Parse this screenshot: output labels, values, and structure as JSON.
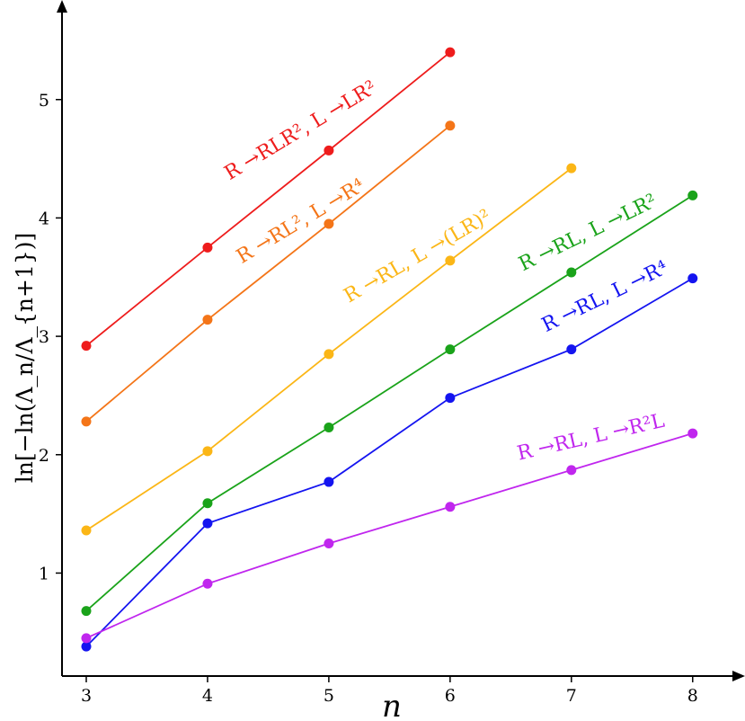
{
  "chart_data": {
    "type": "line",
    "xlabel": "n",
    "ylabel": "ln[−ln(Λ_n/Λ_{n+1})]",
    "xlim": [
      2.8,
      8.35
    ],
    "ylim": [
      0.13,
      5.75
    ],
    "xticks": [
      "3",
      "4",
      "5",
      "6",
      "7",
      "8"
    ],
    "yticks": [
      "1",
      "2",
      "3",
      "4",
      "5"
    ],
    "grid": false,
    "series": [
      {
        "name": "R →RLR², L →LR²",
        "color": "#ee1c1c",
        "x": [
          3,
          4,
          5,
          6
        ],
        "y": [
          2.92,
          3.75,
          4.57,
          5.4
        ]
      },
      {
        "name": "R →RL², L →R⁴",
        "color": "#f47518",
        "x": [
          3,
          4,
          5,
          6
        ],
        "y": [
          2.28,
          3.14,
          3.95,
          4.78
        ]
      },
      {
        "name": "R →RL, L →(LR)²",
        "color": "#fbb616",
        "x": [
          3,
          4,
          5,
          6,
          7
        ],
        "y": [
          1.36,
          2.03,
          2.85,
          3.64,
          4.42
        ]
      },
      {
        "name": "R →RL, L →LR²",
        "color": "#1aa31a",
        "x": [
          3,
          4,
          5,
          6,
          7,
          8
        ],
        "y": [
          0.68,
          1.59,
          2.23,
          2.89,
          3.54,
          4.19
        ]
      },
      {
        "name": "R →RL, L →R⁴",
        "color": "#1414f0",
        "x": [
          3,
          4,
          5,
          6,
          7,
          8
        ],
        "y": [
          0.38,
          1.42,
          1.77,
          2.48,
          2.89,
          3.49
        ]
      },
      {
        "name": "R →RL, L →R²L",
        "color": "#c026ee",
        "x": [
          3,
          4,
          5,
          6,
          7,
          8
        ],
        "y": [
          0.45,
          0.91,
          1.25,
          1.56,
          1.87,
          2.18
        ]
      }
    ]
  }
}
